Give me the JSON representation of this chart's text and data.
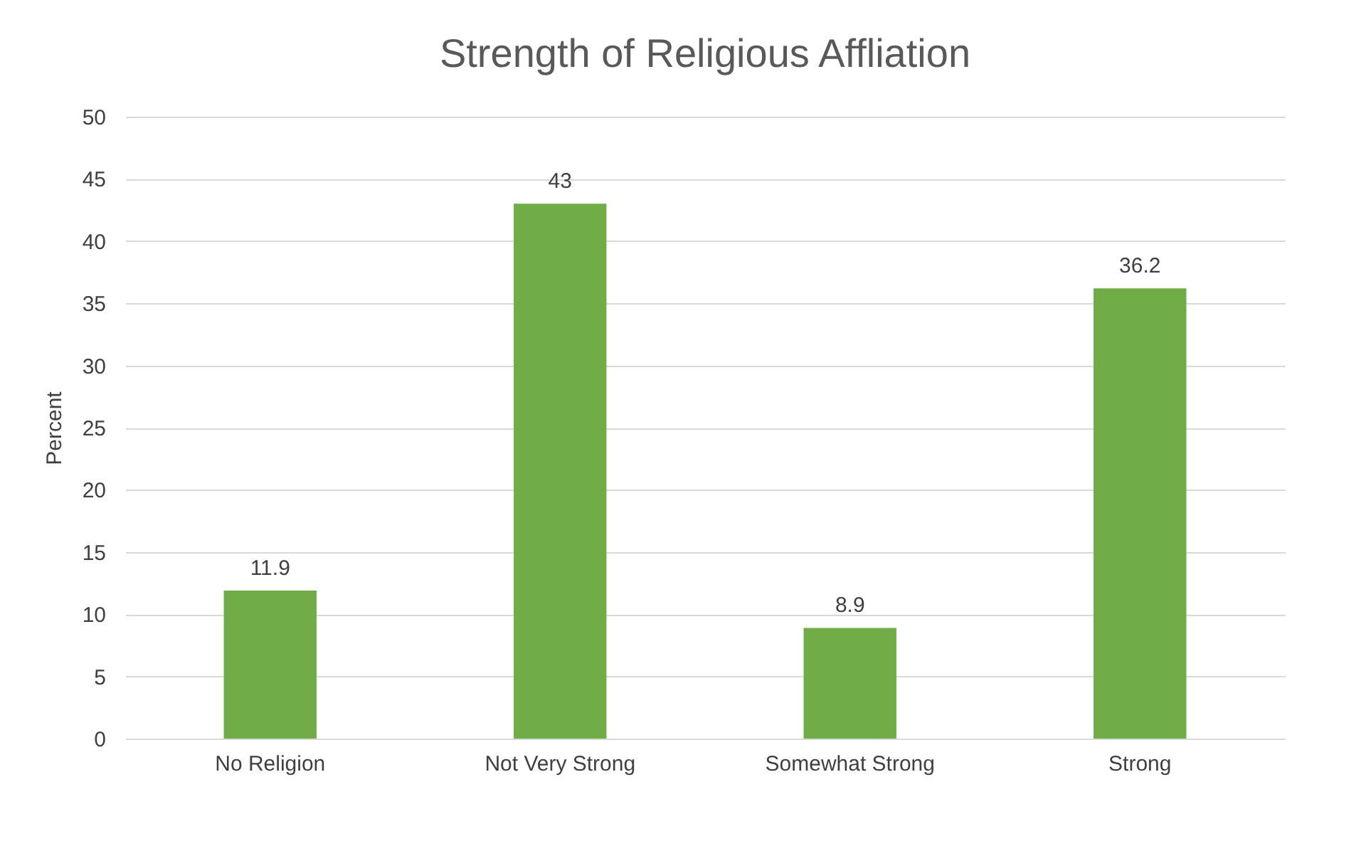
{
  "chart_data": {
    "type": "bar",
    "title": "Strength of Religious Affliation",
    "ylabel": "Percent",
    "categories": [
      "No Religion",
      "Not Very Strong",
      "Somewhat Strong",
      "Strong"
    ],
    "values": [
      11.9,
      43,
      8.9,
      36.2
    ],
    "color": "#70ad47",
    "ylim": [
      0,
      50
    ],
    "yticks": [
      0,
      5,
      10,
      15,
      20,
      25,
      30,
      35,
      40,
      45,
      50
    ],
    "grid": "y",
    "data_labels": true
  }
}
